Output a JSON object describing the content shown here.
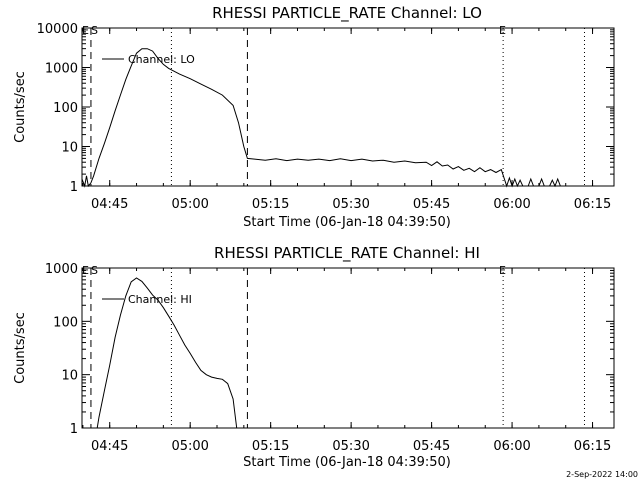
{
  "footer": {
    "timestamp": "2-Sep-2022 14:00"
  },
  "chart_data": [
    {
      "type": "line",
      "title": "RHESSI PARTICLE_RATE Channel: LO",
      "xlabel": "Start Time (06-Jan-18 04:39:50)",
      "ylabel": "Counts/sec",
      "yscale": "log",
      "xlim": [
        "04:39:50",
        "06:19:00"
      ],
      "ylim": [
        1,
        10000
      ],
      "xticks": [
        "04:45",
        "05:00",
        "05:15",
        "05:30",
        "05:45",
        "06:00",
        "06:15"
      ],
      "yticks": [
        "1",
        "10",
        "100",
        "1000",
        "10000"
      ],
      "legend": {
        "placement": "top-left",
        "entries": [
          "Channel: LO"
        ]
      },
      "markers": [
        {
          "time": "04:41:30",
          "style": "dashed",
          "label": "S"
        },
        {
          "time": "04:56:30",
          "style": "dotted",
          "label": ""
        },
        {
          "time": "05:10:40",
          "style": "dashed",
          "label": ""
        },
        {
          "time": "05:58:20",
          "style": "dotted",
          "label": "E"
        },
        {
          "time": "06:13:30",
          "style": "dotted",
          "label": ""
        }
      ],
      "corner_label": "E",
      "series": [
        {
          "name": "Channel: LO",
          "points": [
            [
              "04:39:50",
              1.5
            ],
            [
              "04:40:20",
              1.0
            ],
            [
              "04:40:40",
              1.8
            ],
            [
              "04:41:00",
              1.0
            ],
            [
              "04:41:30",
              1.2
            ],
            [
              "04:42:00",
              1.8
            ],
            [
              "04:43:00",
              5
            ],
            [
              "04:44:00",
              12
            ],
            [
              "04:45:00",
              30
            ],
            [
              "04:46:00",
              80
            ],
            [
              "04:47:00",
              200
            ],
            [
              "04:48:00",
              500
            ],
            [
              "04:49:00",
              1100
            ],
            [
              "04:50:00",
              2300
            ],
            [
              "04:51:00",
              3000
            ],
            [
              "04:52:00",
              3000
            ],
            [
              "04:53:00",
              2600
            ],
            [
              "04:54:00",
              1700
            ],
            [
              "04:55:00",
              1200
            ],
            [
              "04:56:00",
              950
            ],
            [
              "04:58:00",
              680
            ],
            [
              "05:00:00",
              520
            ],
            [
              "05:02:00",
              380
            ],
            [
              "05:04:00",
              280
            ],
            [
              "05:06:00",
              200
            ],
            [
              "05:08:00",
              110
            ],
            [
              "05:09:00",
              40
            ],
            [
              "05:10:00",
              10
            ],
            [
              "05:10:40",
              5
            ],
            [
              "05:12:00",
              4.8
            ],
            [
              "05:14:00",
              4.5
            ],
            [
              "05:16:00",
              4.9
            ],
            [
              "05:18:00",
              4.4
            ],
            [
              "05:20:00",
              4.8
            ],
            [
              "05:22:00",
              4.5
            ],
            [
              "05:24:00",
              4.8
            ],
            [
              "05:26:00",
              4.4
            ],
            [
              "05:28:00",
              4.9
            ],
            [
              "05:30:00",
              4.4
            ],
            [
              "05:32:00",
              4.8
            ],
            [
              "05:34:00",
              4.3
            ],
            [
              "05:36:00",
              4.5
            ],
            [
              "05:38:00",
              4.0
            ],
            [
              "05:40:00",
              4.3
            ],
            [
              "05:42:00",
              3.9
            ],
            [
              "05:44:00",
              4.0
            ],
            [
              "05:45:00",
              3.3
            ],
            [
              "05:46:00",
              4.1
            ],
            [
              "05:47:00",
              3.2
            ],
            [
              "05:48:00",
              3.4
            ],
            [
              "05:49:00",
              2.7
            ],
            [
              "05:50:00",
              3.1
            ],
            [
              "05:51:00",
              2.5
            ],
            [
              "05:52:00",
              2.8
            ],
            [
              "05:53:00",
              2.3
            ],
            [
              "05:54:00",
              2.9
            ],
            [
              "05:55:00",
              2.3
            ],
            [
              "05:56:00",
              2.6
            ],
            [
              "05:57:00",
              2.2
            ],
            [
              "05:58:00",
              2.6
            ],
            [
              "05:59:00",
              1.0
            ],
            [
              "05:59:30",
              1.6
            ],
            [
              "06:00:00",
              1.0
            ],
            [
              "06:00:30",
              1.5
            ],
            [
              "06:01:00",
              1.0
            ],
            [
              "06:01:30",
              1.4
            ],
            [
              "06:02:00",
              1.0
            ],
            [
              "06:03:00",
              1.0
            ],
            [
              "06:03:30",
              1.5
            ],
            [
              "06:04:00",
              1.0
            ],
            [
              "06:05:00",
              1.0
            ],
            [
              "06:05:30",
              1.5
            ],
            [
              "06:06:00",
              1.0
            ],
            [
              "06:07:00",
              1.0
            ],
            [
              "06:07:30",
              1.4
            ],
            [
              "06:08:00",
              1.0
            ],
            [
              "06:08:30",
              1.5
            ],
            [
              "06:09:00",
              1.0
            ]
          ]
        }
      ]
    },
    {
      "type": "line",
      "title": "RHESSI PARTICLE_RATE Channel: HI",
      "xlabel": "Start Time (06-Jan-18 04:39:50)",
      "ylabel": "Counts/sec",
      "yscale": "log",
      "xlim": [
        "04:39:50",
        "06:19:00"
      ],
      "ylim": [
        1,
        1000
      ],
      "xticks": [
        "04:45",
        "05:00",
        "05:15",
        "05:30",
        "05:45",
        "06:00",
        "06:15"
      ],
      "yticks": [
        "1",
        "10",
        "100",
        "1000"
      ],
      "legend": {
        "placement": "top-left",
        "entries": [
          "Channel: HI"
        ]
      },
      "markers": [
        {
          "time": "04:41:30",
          "style": "dashed",
          "label": "S"
        },
        {
          "time": "04:56:30",
          "style": "dotted",
          "label": ""
        },
        {
          "time": "05:10:40",
          "style": "dashed",
          "label": ""
        },
        {
          "time": "05:58:20",
          "style": "dotted",
          "label": "E"
        },
        {
          "time": "06:13:30",
          "style": "dotted",
          "label": ""
        }
      ],
      "corner_label": "E",
      "series": [
        {
          "name": "Channel: HI",
          "points": [
            [
              "04:42:40",
              1.0
            ],
            [
              "04:43:00",
              1.6
            ],
            [
              "04:44:00",
              5
            ],
            [
              "04:45:00",
              15
            ],
            [
              "04:46:00",
              50
            ],
            [
              "04:47:00",
              130
            ],
            [
              "04:48:00",
              300
            ],
            [
              "04:49:00",
              550
            ],
            [
              "04:50:00",
              650
            ],
            [
              "04:51:00",
              560
            ],
            [
              "04:52:00",
              420
            ],
            [
              "04:53:00",
              310
            ],
            [
              "04:54:00",
              250
            ],
            [
              "04:55:00",
              180
            ],
            [
              "04:56:00",
              125
            ],
            [
              "04:57:00",
              85
            ],
            [
              "04:58:00",
              55
            ],
            [
              "04:59:00",
              36
            ],
            [
              "05:00:00",
              25
            ],
            [
              "05:01:00",
              17
            ],
            [
              "05:02:00",
              12
            ],
            [
              "05:03:00",
              10
            ],
            [
              "05:04:00",
              9
            ],
            [
              "05:05:00",
              8.5
            ],
            [
              "05:06:00",
              8.2
            ],
            [
              "05:07:00",
              6.8
            ],
            [
              "05:08:00",
              3.5
            ],
            [
              "05:08:40",
              1.0
            ]
          ]
        }
      ]
    }
  ]
}
